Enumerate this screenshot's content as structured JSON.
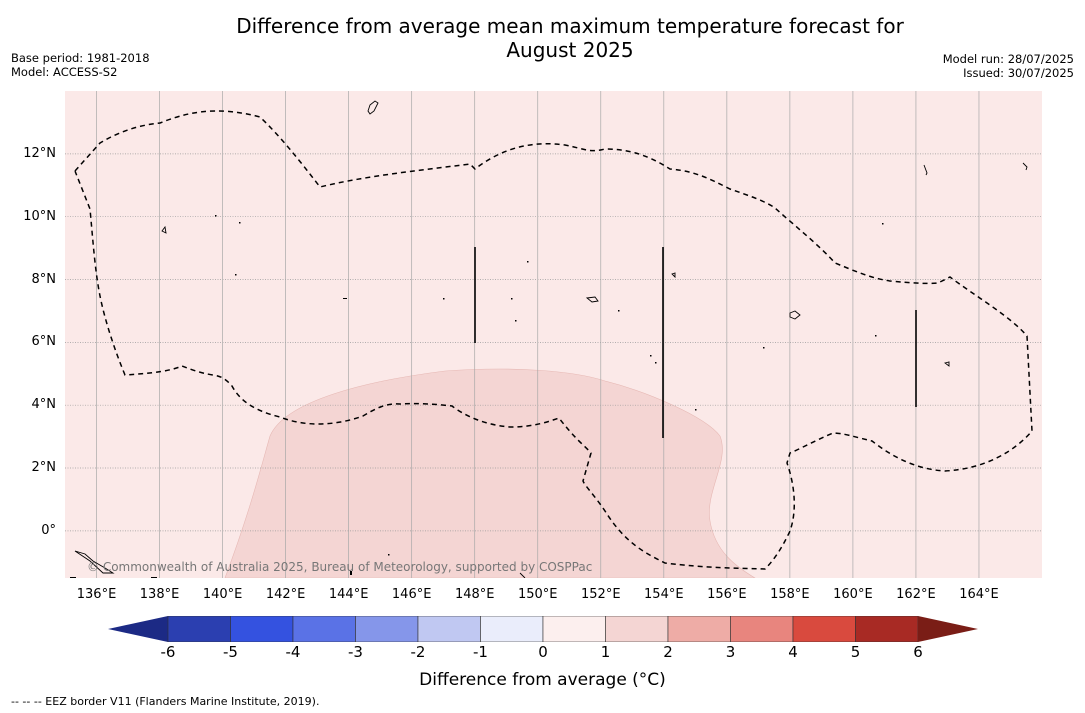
{
  "title_line1": "Difference from average mean maximum temperature forecast for",
  "title_line2": "August 2025",
  "base_period": "Base period: 1981-2018",
  "model": "Model: ACCESS-S2",
  "model_run": "Model run: 28/07/2025",
  "issued": "Issued: 30/07/2025",
  "copyright": "© Commonwealth of Australia 2025, Bureau of Meteorology, supported by COSPPac",
  "footnote": "-- -- -- EEZ border V11 (Flanders Marine Institute, 2019).",
  "map": {
    "lon_range": [
      135,
      166
    ],
    "lat_range": [
      -1.5,
      14
    ],
    "lat_ticks": [
      "12°N",
      "10°N",
      "8°N",
      "6°N",
      "4°N",
      "2°N",
      "0°"
    ],
    "lon_ticks": [
      "136°E",
      "138°E",
      "140°E",
      "142°E",
      "144°E",
      "146°E",
      "148°E",
      "150°E",
      "152°E",
      "154°E",
      "156°E",
      "158°E",
      "160°E",
      "162°E",
      "164°E"
    ],
    "background_category": "0 to 1",
    "background_color": "#fbe9e8",
    "anomaly_region_category": "1 to 2",
    "anomaly_region_color": "#f4d5d3",
    "grid": true
  },
  "colorbar": {
    "label": "Difference from average (°C)",
    "ticks": [
      "-6",
      "-5",
      "-4",
      "-3",
      "-2",
      "-1",
      "0",
      "1",
      "2",
      "3",
      "4",
      "5",
      "6"
    ],
    "colors": [
      "#2b3fb0",
      "#3452e0",
      "#5a72e6",
      "#8596ea",
      "#c0c8f2",
      "#eaedfb",
      "#fcefee",
      "#f4d5d3",
      "#eeaca6",
      "#e8857e",
      "#d94a3e",
      "#a82a24"
    ],
    "under_color": "#1c2a85",
    "over_color": "#7a1d16"
  }
}
